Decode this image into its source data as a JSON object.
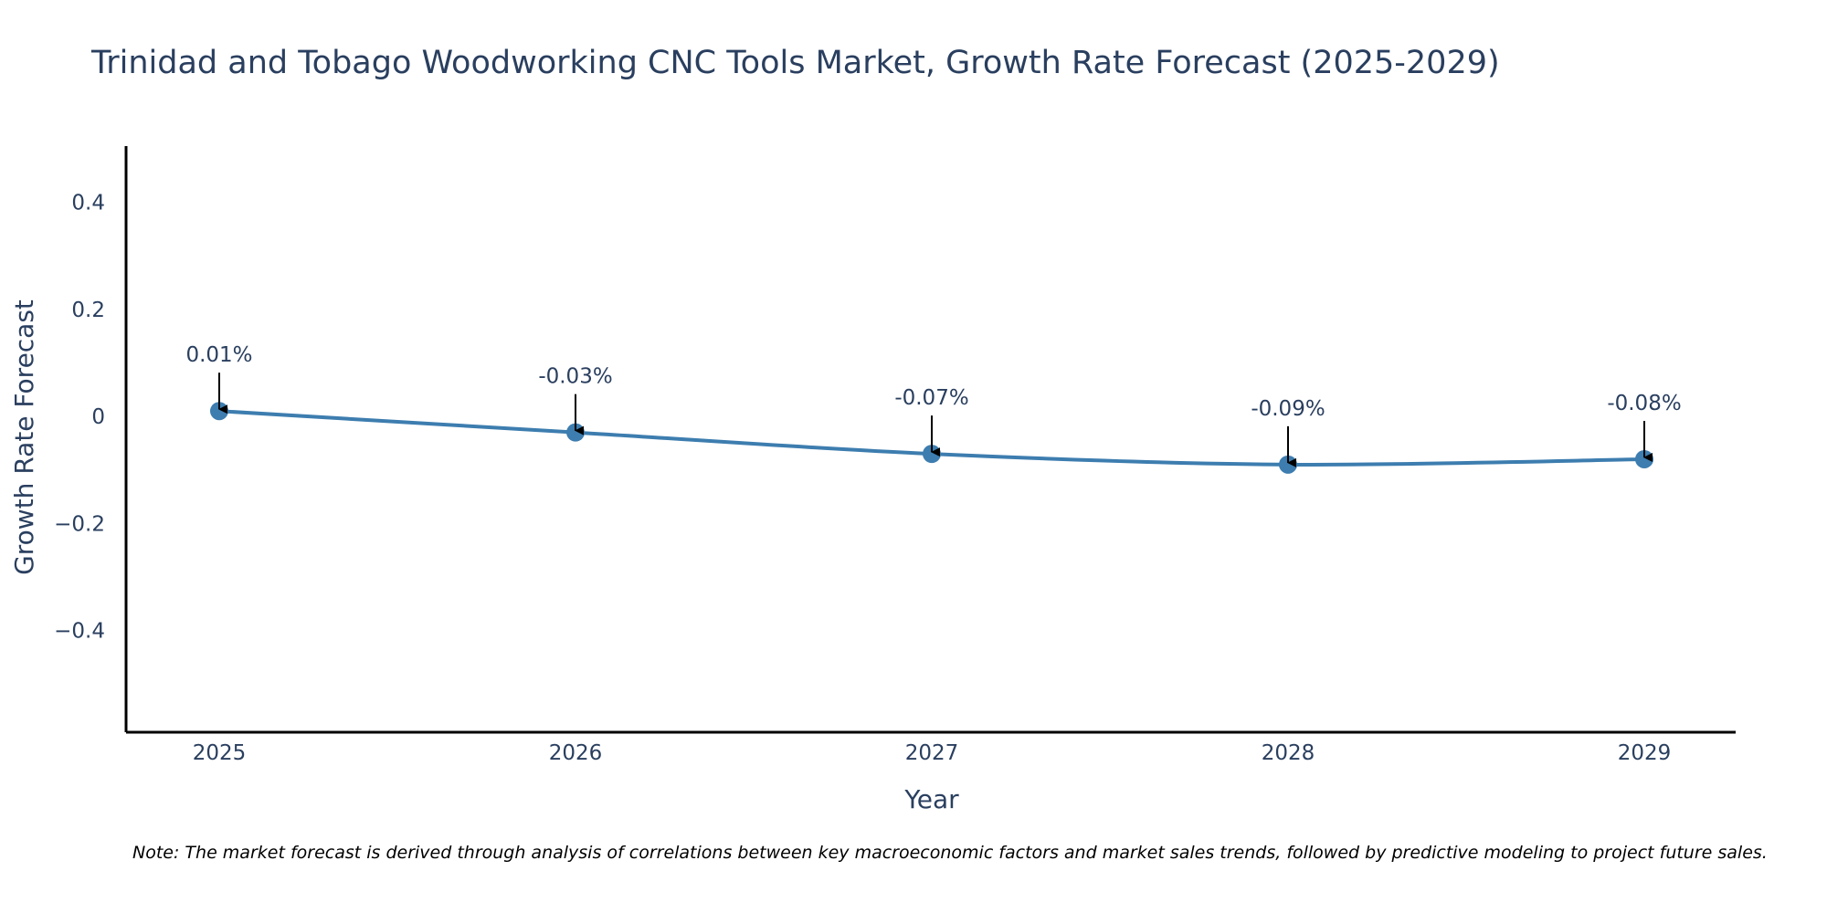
{
  "chart_data": {
    "type": "line",
    "title": "Trinidad and Tobago Woodworking CNC Tools Market, Growth Rate Forecast (2025-2029)",
    "xlabel": "Year",
    "ylabel": "Growth Rate Forecast",
    "categories": [
      "2025",
      "2026",
      "2027",
      "2028",
      "2029"
    ],
    "series": [
      {
        "name": "Growth Rate Forecast",
        "values": [
          0.01,
          -0.03,
          -0.07,
          -0.09,
          -0.08
        ],
        "color": "#3d7daf"
      }
    ],
    "data_labels": [
      "0.01%",
      "-0.03%",
      "-0.07%",
      "-0.09%",
      "-0.08%"
    ],
    "y_ticks": [
      0.4,
      0.2,
      0,
      -0.2,
      -0.4
    ],
    "y_tick_labels": [
      "0.4",
      "0.2",
      "0",
      "−0.2",
      "−0.4"
    ],
    "ylim": [
      -0.59,
      0.505
    ],
    "grid": false,
    "note": "Note: The market forecast is derived through analysis of correlations between key macroeconomic factors and market sales trends, followed by predictive modeling to project future sales."
  },
  "colors": {
    "line": "#3d7daf",
    "marker": "#3d7daf",
    "text": "#2a3f5f",
    "axis": "#000000",
    "arrow": "#000000"
  }
}
